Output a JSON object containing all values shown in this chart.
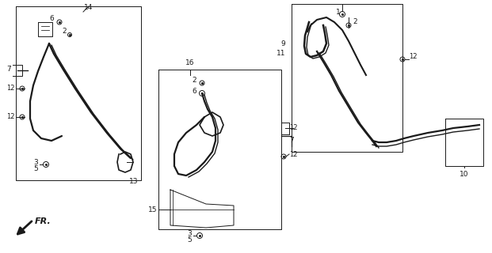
{
  "bg_color": "#ffffff",
  "line_color": "#1a1a1a",
  "fig_width": 6.21,
  "fig_height": 3.2,
  "dpi": 100
}
